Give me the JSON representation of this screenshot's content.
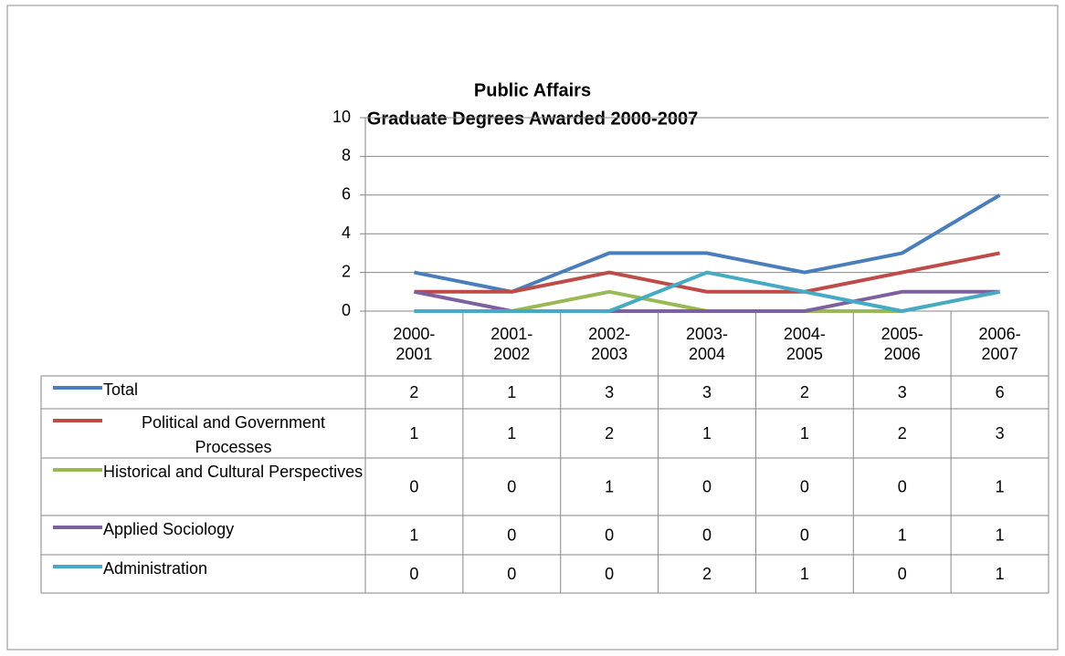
{
  "chart_data": {
    "type": "line",
    "title": "Public Affairs",
    "subtitle": "Graduate Degrees Awarded 2000-2007",
    "categories": [
      "2000-\n2001",
      "2001-\n2002",
      "2002-\n2003",
      "2003-\n2004",
      "2004-\n2005",
      "2005-\n2006",
      "2006-\n2007"
    ],
    "series": [
      {
        "name": "Total",
        "color": "#4a7ebb",
        "values": [
          2,
          1,
          3,
          3,
          2,
          3,
          6
        ]
      },
      {
        "name": "Political and Government Processes",
        "color": "#be4b48",
        "values": [
          1,
          1,
          2,
          1,
          1,
          2,
          3
        ]
      },
      {
        "name": "Historical and Cultural Perspectives",
        "color": "#98b954",
        "values": [
          0,
          0,
          1,
          0,
          0,
          0,
          1
        ]
      },
      {
        "name": "Applied Sociology",
        "color": "#7d60a0",
        "values": [
          1,
          0,
          0,
          0,
          0,
          1,
          1
        ]
      },
      {
        "name": "Administration",
        "color": "#46aac5",
        "values": [
          0,
          0,
          0,
          2,
          1,
          0,
          1
        ]
      }
    ],
    "ylim": [
      0,
      10
    ],
    "yticks": [
      0,
      2,
      4,
      6,
      8,
      10
    ],
    "grid": true,
    "data_table": true
  }
}
